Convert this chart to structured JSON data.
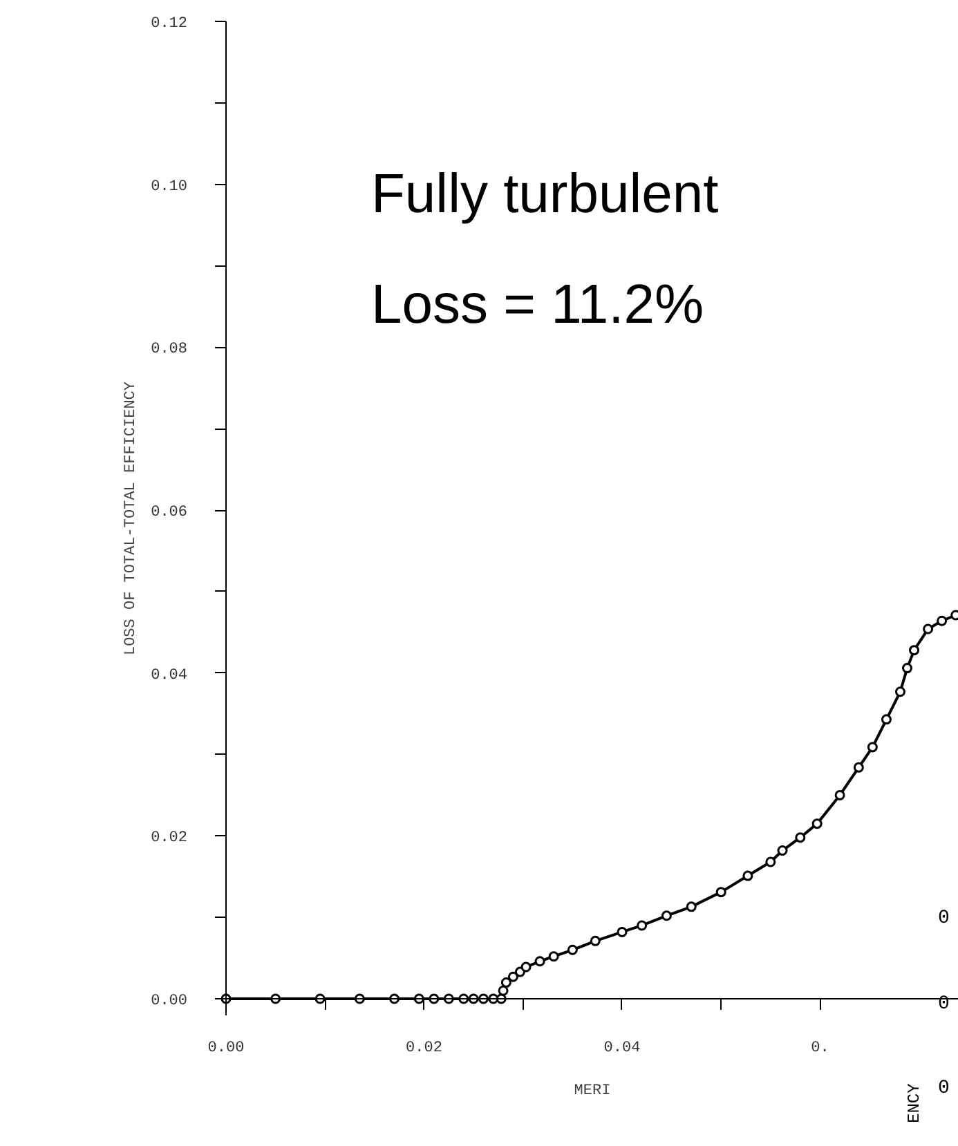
{
  "chart_data": {
    "type": "line",
    "xlabel": "MERI",
    "ylabel": "LOSS OF TOTAL-TOTAL EFFICIENCY",
    "annotations": [
      "Fully turbulent",
      "Loss = 11.2%",
      "0",
      "0",
      "0",
      "ENCY"
    ],
    "xlim": [
      0,
      0.074
    ],
    "ylim": [
      0,
      0.12
    ],
    "xticks": [
      {
        "value": 0,
        "label": "0.00"
      },
      {
        "value": 0.01,
        "label": null
      },
      0.02,
      {
        "value": 0.03,
        "label": null
      },
      0.04,
      {
        "value": 0.05,
        "label": null
      },
      {
        "value": 0.06,
        "label": "0."
      }
    ],
    "yticks": [
      {
        "value": 0,
        "label": "0.00"
      },
      {
        "value": 0.01,
        "label": null
      },
      0.02,
      {
        "value": 0.03,
        "label": null
      },
      0.04,
      {
        "value": 0.05,
        "label": null
      },
      0.06,
      {
        "value": 0.07,
        "label": null
      },
      0.08,
      {
        "value": 0.09,
        "label": null
      },
      {
        "value": 0.1,
        "label": "0.10"
      },
      {
        "value": 0.11,
        "label": null
      },
      0.12
    ],
    "marker": "circle",
    "grid": false,
    "series": [
      {
        "color": "#000000",
        "x": [
          0,
          0.005,
          0.0095,
          0.0135,
          0.017,
          0.0195,
          0.021,
          0.0225,
          0.024,
          0.025,
          0.026,
          0.027,
          0.0278,
          0.028,
          0.0283,
          0.029,
          0.0297,
          0.0303,
          0.0317,
          0.0331,
          0.035,
          0.0373,
          0.04,
          0.042,
          0.0445,
          0.047,
          0.05,
          0.0527,
          0.055,
          0.0562,
          0.058,
          0.0597,
          0.062,
          0.0639,
          0.0653,
          0.0667,
          0.0681,
          0.0688,
          0.0695,
          0.0709,
          0.0723,
          0.0737
        ],
        "values": [
          0,
          0,
          0,
          0,
          0,
          0,
          0,
          0,
          0,
          0,
          0,
          0,
          0,
          0.001,
          0.002,
          0.0027,
          0.0033,
          0.0039,
          0.0046,
          0.0052,
          0.006,
          0.0071,
          0.0082,
          0.009,
          0.0102,
          0.0113,
          0.0131,
          0.0151,
          0.0168,
          0.0182,
          0.0198,
          0.0215,
          0.025,
          0.0284,
          0.0309,
          0.0343,
          0.0377,
          0.0406,
          0.0428,
          0.0454,
          0.0464,
          0.0471
        ]
      }
    ]
  }
}
